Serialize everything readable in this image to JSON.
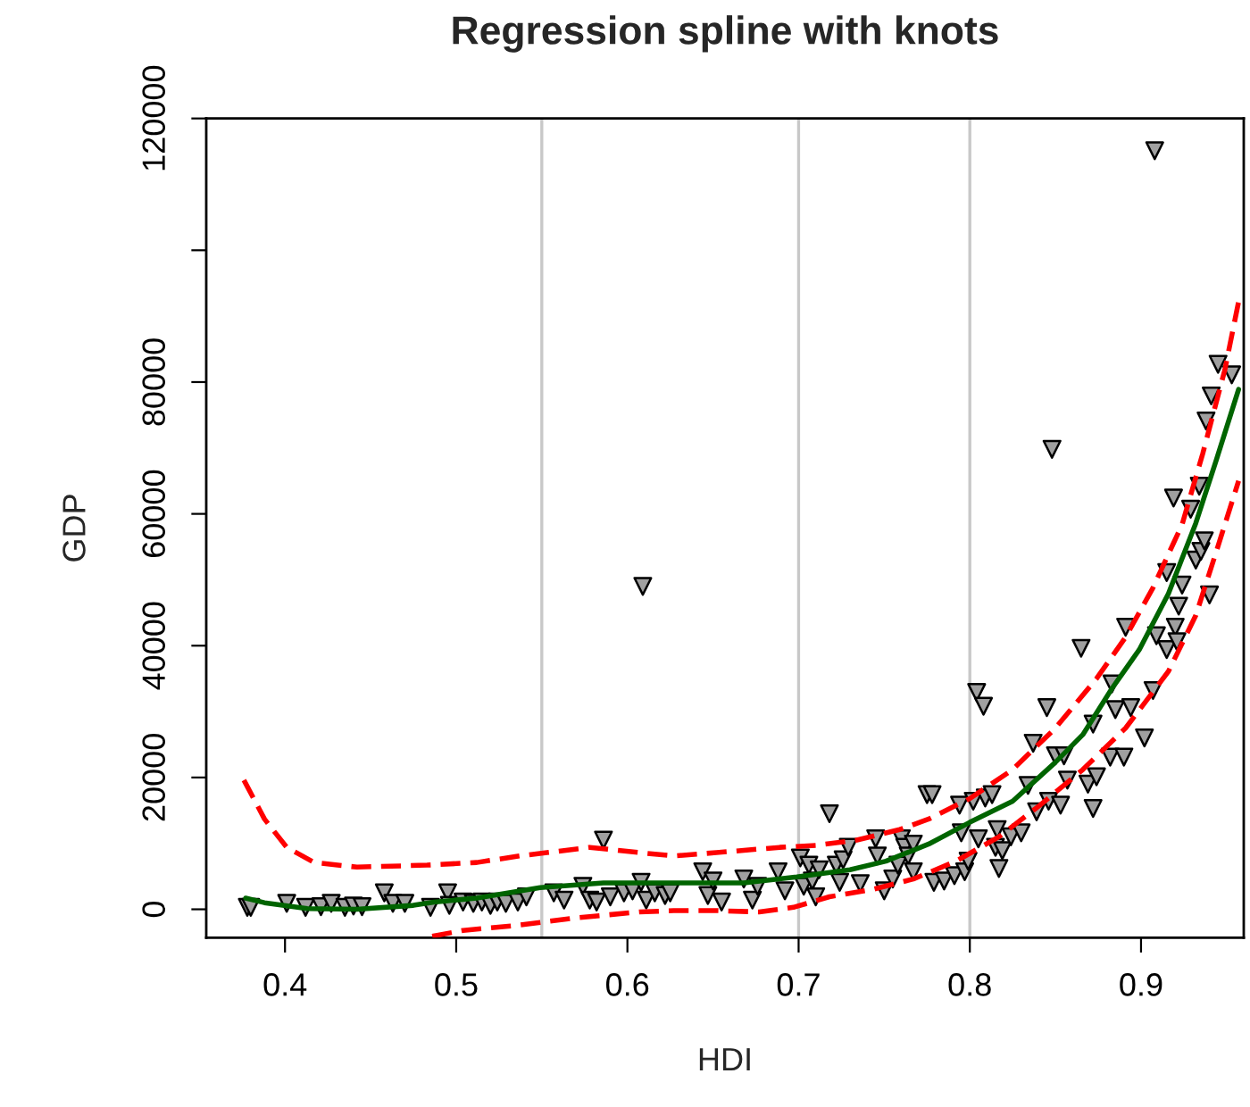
{
  "chart_data": {
    "type": "scatter",
    "title": "Regression spline with knots",
    "xlabel": "HDI",
    "ylabel": "GDP",
    "xlim": [
      0.354,
      0.96
    ],
    "ylim": [
      -4300,
      120000
    ],
    "xticks": [
      0.4,
      0.5,
      0.6,
      0.7,
      0.8,
      0.9
    ],
    "yticks": [
      0,
      20000,
      40000,
      60000,
      80000,
      {
        "value": 100000,
        "label": null
      },
      120000
    ],
    "grid": false,
    "legend": false,
    "ref_lines": [
      {
        "axis": "x",
        "value": 0.55,
        "color": "#c8c8c8",
        "line_style": "solid"
      },
      {
        "axis": "x",
        "value": 0.7,
        "color": "#c8c8c8",
        "line_style": "solid"
      },
      {
        "axis": "x",
        "value": 0.8,
        "color": "#c8c8c8",
        "line_style": "solid"
      }
    ],
    "series": [
      {
        "color": "#a0a0a0",
        "marker": "triangle",
        "x": [
          0.378,
          0.38,
          0.401,
          0.412,
          0.421,
          0.427,
          0.435,
          0.44,
          0.445,
          0.458,
          0.463,
          0.47,
          0.485,
          0.495,
          0.496,
          0.504,
          0.51,
          0.515,
          0.52,
          0.524,
          0.529,
          0.536,
          0.541,
          0.557,
          0.563,
          0.574,
          0.578,
          0.582,
          0.586,
          0.59,
          0.598,
          0.603,
          0.608,
          0.609,
          0.611,
          0.616,
          0.622,
          0.625,
          0.644,
          0.647,
          0.65,
          0.655,
          0.668,
          0.673,
          0.676,
          0.688,
          0.692,
          0.701,
          0.703,
          0.706,
          0.708,
          0.71,
          0.712,
          0.718,
          0.722,
          0.724,
          0.726,
          0.729,
          0.736,
          0.745,
          0.746,
          0.75,
          0.755,
          0.758,
          0.76,
          0.762,
          0.764,
          0.767,
          0.767,
          0.775,
          0.778,
          0.779,
          0.785,
          0.791,
          0.794,
          0.795,
          0.797,
          0.799,
          0.802,
          0.804,
          0.805,
          0.808,
          0.809,
          0.813,
          0.815,
          0.816,
          0.817,
          0.819,
          0.824,
          0.83,
          0.834,
          0.837,
          0.839,
          0.845,
          0.846,
          0.848,
          0.85,
          0.853,
          0.855,
          0.857,
          0.865,
          0.869,
          0.872,
          0.872,
          0.874,
          0.882,
          0.883,
          0.885,
          0.89,
          0.891,
          0.894,
          0.902,
          0.907,
          0.908,
          0.909,
          0.915,
          0.915,
          0.919,
          0.92,
          0.921,
          0.922,
          0.924,
          0.929,
          0.932,
          0.934,
          0.935,
          0.937,
          0.938,
          0.94,
          0.941,
          0.945,
          0.953
        ],
        "values": [
          300,
          300,
          900,
          300,
          400,
          900,
          300,
          500,
          400,
          2500,
          900,
          900,
          300,
          2500,
          600,
          1100,
          900,
          1100,
          600,
          1100,
          900,
          1100,
          1900,
          2500,
          1400,
          3500,
          1400,
          1100,
          10500,
          1900,
          2500,
          2800,
          4100,
          49000,
          1400,
          2500,
          2100,
          2500,
          5700,
          2100,
          4300,
          1100,
          4600,
          1400,
          3500,
          5700,
          2800,
          7800,
          3500,
          6700,
          4300,
          1900,
          6000,
          14500,
          6700,
          4100,
          7500,
          9400,
          3900,
          10700,
          8100,
          2800,
          4600,
          6700,
          10700,
          9400,
          8100,
          9900,
          5700,
          17400,
          17400,
          4100,
          4300,
          5100,
          15800,
          11600,
          5700,
          7300,
          16400,
          32900,
          10700,
          30800,
          16900,
          17400,
          9400,
          12100,
          6200,
          8900,
          11000,
          11600,
          18800,
          25200,
          14800,
          30600,
          16400,
          69800,
          23300,
          15800,
          23300,
          19600,
          39600,
          19000,
          15300,
          28100,
          20100,
          23100,
          34200,
          30300,
          23100,
          42800,
          30600,
          26000,
          33200,
          115100,
          41500,
          39400,
          51100,
          62400,
          42800,
          40600,
          46000,
          49200,
          60700,
          53000,
          64200,
          54300,
          55900,
          74100,
          47700,
          77900,
          82700,
          81100
        ]
      },
      {
        "type": "line",
        "color": "#006400",
        "line_style": "solid",
        "x": [
          0.377,
          0.388,
          0.413,
          0.442,
          0.475,
          0.487,
          0.512,
          0.549,
          0.586,
          0.627,
          0.668,
          0.699,
          0.73,
          0.751,
          0.776,
          0.8,
          0.825,
          0.85,
          0.866,
          0.883,
          0.899,
          0.916,
          0.932,
          0.944,
          0.957
        ],
        "values": [
          1700,
          1000,
          100,
          0,
          600,
          1100,
          1700,
          3300,
          4000,
          4000,
          4000,
          4900,
          6000,
          7300,
          9900,
          13200,
          16400,
          22300,
          26500,
          33500,
          39400,
          47900,
          58600,
          68200,
          78900
        ]
      },
      {
        "type": "line",
        "color": "#ff0000",
        "line_style": "dashed",
        "x": [
          0.376,
          0.388,
          0.401,
          0.417,
          0.442,
          0.483,
          0.512,
          0.537,
          0.553,
          0.578,
          0.607,
          0.627,
          0.652,
          0.689,
          0.71,
          0.734,
          0.759,
          0.776,
          0.8,
          0.825,
          0.85,
          0.874,
          0.891,
          0.907,
          0.924,
          0.936,
          0.949,
          0.957
        ],
        "values": [
          19600,
          13700,
          9400,
          7100,
          6400,
          6700,
          7100,
          8100,
          8600,
          9400,
          8600,
          8100,
          8600,
          9400,
          9700,
          10500,
          12100,
          13700,
          16800,
          21200,
          27500,
          35000,
          41300,
          48800,
          58400,
          69100,
          81900,
          92200
        ]
      },
      {
        "type": "line",
        "color": "#ff0000",
        "line_style": "dashed",
        "x": [
          0.486,
          0.504,
          0.537,
          0.57,
          0.607,
          0.627,
          0.652,
          0.677,
          0.697,
          0.718,
          0.743,
          0.767,
          0.792,
          0.817,
          0.841,
          0.866,
          0.891,
          0.916,
          0.932,
          0.944,
          0.957
        ],
        "values": [
          -4100,
          -3200,
          -2400,
          -1300,
          -400,
          -200,
          -200,
          -400,
          300,
          1900,
          3000,
          4600,
          7300,
          11000,
          15800,
          21200,
          27500,
          36100,
          44600,
          54300,
          65000
        ]
      }
    ]
  }
}
